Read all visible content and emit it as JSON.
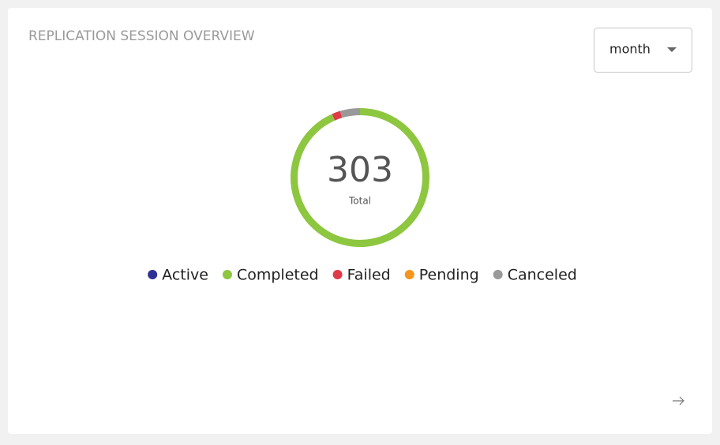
{
  "chart_data": {
    "type": "donut",
    "title": "REPLICATION SESSION OVERVIEW",
    "period": "month",
    "total": 303,
    "total_label": "Total",
    "categories": [
      "Active",
      "Completed",
      "Failed",
      "Pending",
      "Canceled"
    ],
    "values": [
      0,
      283,
      6,
      0,
      14
    ],
    "colors": [
      "#2e3192",
      "#8dc63f",
      "#e03a48",
      "#f7941d",
      "#999999"
    ]
  }
}
